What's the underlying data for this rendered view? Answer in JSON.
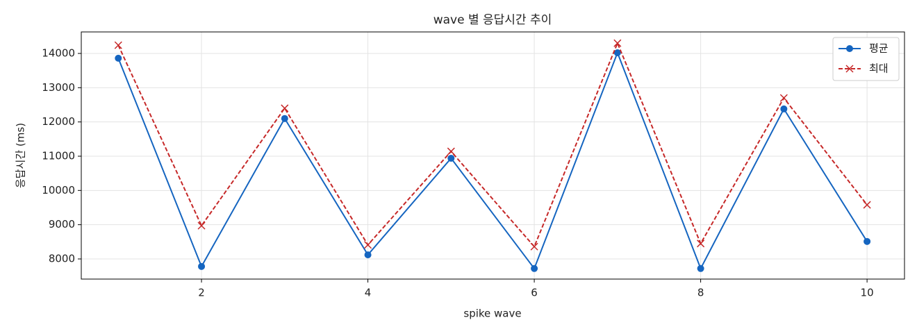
{
  "chart_data": {
    "type": "line",
    "title": "wave 별 응답시간 추이",
    "x_label": "spike wave",
    "y_label": "응답시간 (ms)",
    "x": [
      1,
      2,
      3,
      4,
      5,
      6,
      7,
      8,
      9,
      10
    ],
    "series": [
      {
        "name": "평균",
        "color": "#1565c0",
        "marker": "o",
        "linestyle": "solid",
        "values": [
          13860,
          7780,
          12100,
          8120,
          10940,
          7720,
          14020,
          7720,
          12380,
          8510
        ]
      },
      {
        "name": "최대",
        "color": "#c62828",
        "marker": "x",
        "linestyle": "dashed",
        "values": [
          14240,
          8970,
          12400,
          8410,
          11140,
          8360,
          14300,
          8450,
          12700,
          9580
        ]
      }
    ],
    "xlim": [
      0.555,
      10.45
    ],
    "xticks": [
      2,
      4,
      6,
      8,
      10
    ],
    "ylim": [
      7412,
      14628
    ],
    "yticks": [
      8000,
      9000,
      10000,
      11000,
      12000,
      13000,
      14000
    ],
    "grid": true,
    "legend": "upper right"
  }
}
